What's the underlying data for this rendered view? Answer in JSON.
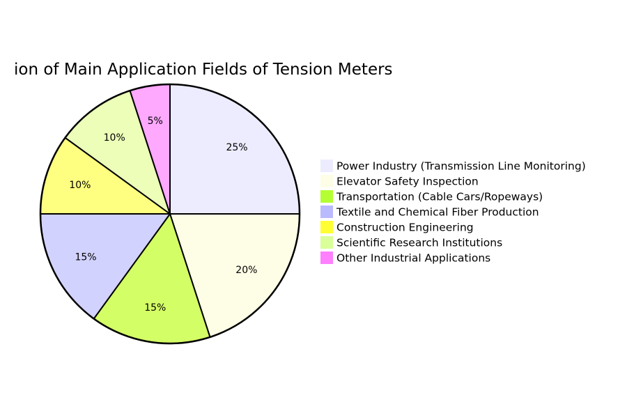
{
  "chart_data": {
    "type": "pie",
    "title": "ion of Main Application Fields of Tension Meters",
    "legend_position": "right",
    "slices": [
      {
        "label": "Power Industry (Transmission Line Monitoring)",
        "value": 25,
        "value_label": "25%",
        "color": "#ececfe"
      },
      {
        "label": "Elevator Safety Inspection",
        "value": 20,
        "value_label": "20%",
        "color": "#fefee6"
      },
      {
        "label": "Transportation (Cable Cars/Ropeways)",
        "value": 15,
        "value_label": "15%",
        "color": "#d4fe66"
      },
      {
        "label": "Textile and Chemical Fiber Production",
        "value": 15,
        "value_label": "15%",
        "color": "#d2d2fe"
      },
      {
        "label": "Construction Engineering",
        "value": 10,
        "value_label": "10%",
        "color": "#fefe80"
      },
      {
        "label": "Scientific Research Institutions",
        "value": 10,
        "value_label": "10%",
        "color": "#ecfeb8"
      },
      {
        "label": "Other Industrial Applications",
        "value": 5,
        "value_label": "5%",
        "color": "#fea8fe"
      }
    ],
    "legend_swatch_colors": [
      "#ececfe",
      "#fefee6",
      "#b4fe33",
      "#babafe",
      "#fefe33",
      "#dafe9a",
      "#fe80fe"
    ]
  }
}
